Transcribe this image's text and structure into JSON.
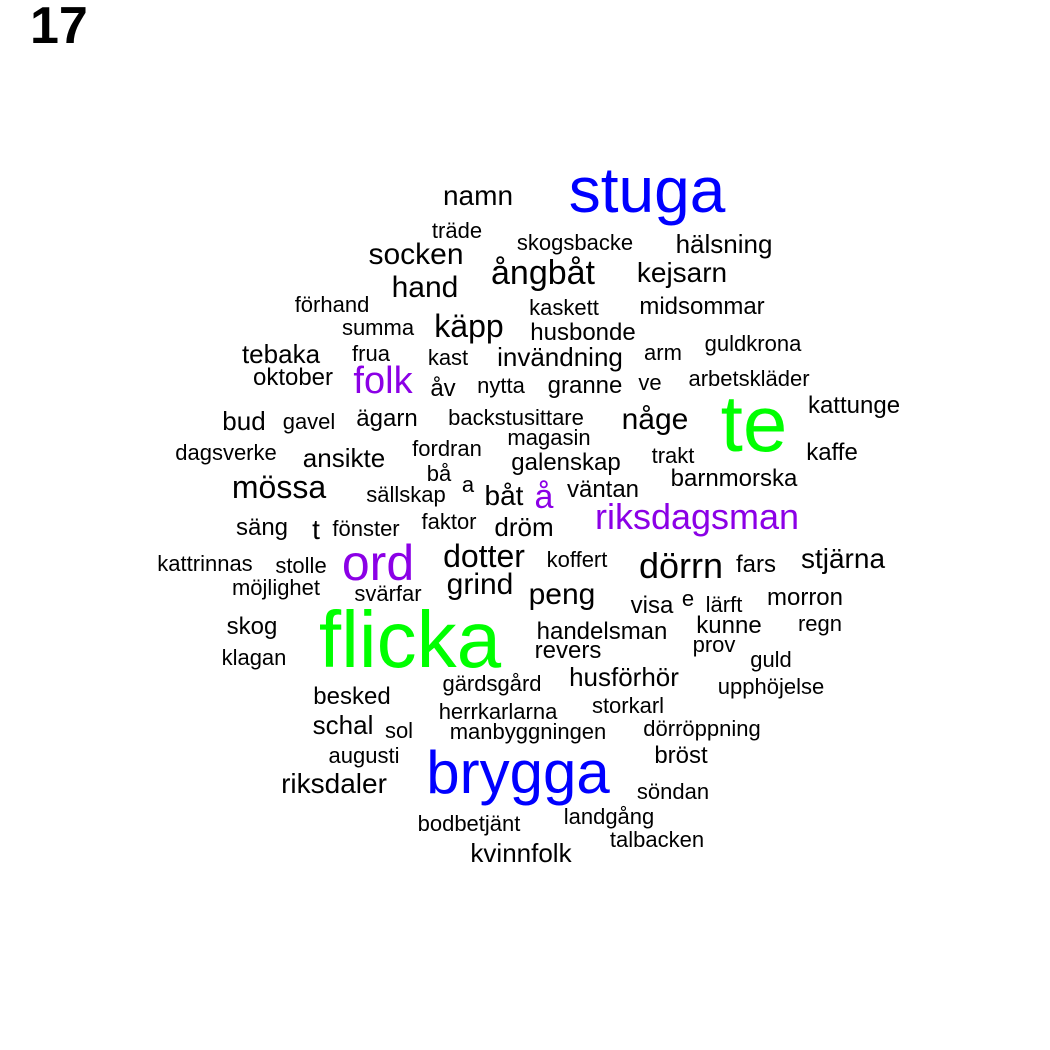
{
  "figure_label": "17",
  "colors": {
    "default": "#000000",
    "blue": "#0000ff",
    "green": "#00ff00",
    "purple": "#8b00e6"
  },
  "words": [
    {
      "text": "stuga",
      "color": "blue"
    },
    {
      "text": "namn"
    },
    {
      "text": "träde"
    },
    {
      "text": "skogsbacke"
    },
    {
      "text": "hälsning"
    },
    {
      "text": "socken"
    },
    {
      "text": "ångbåt"
    },
    {
      "text": "kejsarn"
    },
    {
      "text": "hand"
    },
    {
      "text": "förhand"
    },
    {
      "text": "kaskett"
    },
    {
      "text": "midsommar"
    },
    {
      "text": "summa"
    },
    {
      "text": "käpp"
    },
    {
      "text": "husbonde"
    },
    {
      "text": "tebaka"
    },
    {
      "text": "frua"
    },
    {
      "text": "kast"
    },
    {
      "text": "invändning"
    },
    {
      "text": "arm"
    },
    {
      "text": "guldkrona"
    },
    {
      "text": "oktober"
    },
    {
      "text": "folk",
      "color": "purple"
    },
    {
      "text": "åv"
    },
    {
      "text": "nytta"
    },
    {
      "text": "granne"
    },
    {
      "text": "ve"
    },
    {
      "text": "arbetskläder"
    },
    {
      "text": "te",
      "color": "green"
    },
    {
      "text": "kattunge"
    },
    {
      "text": "bud"
    },
    {
      "text": "gavel"
    },
    {
      "text": "ägarn"
    },
    {
      "text": "backstusittare"
    },
    {
      "text": "någe"
    },
    {
      "text": "magasin"
    },
    {
      "text": "dagsverke"
    },
    {
      "text": "ansikte"
    },
    {
      "text": "fordran"
    },
    {
      "text": "trakt"
    },
    {
      "text": "kaffe"
    },
    {
      "text": "bå"
    },
    {
      "text": "galenskap"
    },
    {
      "text": "barnmorska"
    },
    {
      "text": "mössa"
    },
    {
      "text": "sällskap"
    },
    {
      "text": "a"
    },
    {
      "text": "båt"
    },
    {
      "text": "å",
      "color": "purple"
    },
    {
      "text": "väntan"
    },
    {
      "text": "säng"
    },
    {
      "text": "t"
    },
    {
      "text": "fönster"
    },
    {
      "text": "faktor"
    },
    {
      "text": "dröm"
    },
    {
      "text": "riksdagsman",
      "color": "purple"
    },
    {
      "text": "kattrinnas"
    },
    {
      "text": "stolle"
    },
    {
      "text": "ord",
      "color": "purple"
    },
    {
      "text": "dotter"
    },
    {
      "text": "koffert"
    },
    {
      "text": "dörrn"
    },
    {
      "text": "fars"
    },
    {
      "text": "stjärna"
    },
    {
      "text": "möjlighet"
    },
    {
      "text": "svärfar"
    },
    {
      "text": "grind"
    },
    {
      "text": "peng"
    },
    {
      "text": "visa"
    },
    {
      "text": "e"
    },
    {
      "text": "lärft"
    },
    {
      "text": "morron"
    },
    {
      "text": "skog"
    },
    {
      "text": "flicka",
      "color": "green"
    },
    {
      "text": "handelsman"
    },
    {
      "text": "kunne"
    },
    {
      "text": "regn"
    },
    {
      "text": "klagan"
    },
    {
      "text": "revers"
    },
    {
      "text": "prov"
    },
    {
      "text": "guld"
    },
    {
      "text": "gärdsgård"
    },
    {
      "text": "husförhör"
    },
    {
      "text": "upphöjelse"
    },
    {
      "text": "besked"
    },
    {
      "text": "storkarl"
    },
    {
      "text": "herrkarlarna"
    },
    {
      "text": "schal"
    },
    {
      "text": "sol"
    },
    {
      "text": "manbyggningen"
    },
    {
      "text": "dörröppning"
    },
    {
      "text": "augusti"
    },
    {
      "text": "bröst"
    },
    {
      "text": "brygga",
      "color": "blue"
    },
    {
      "text": "riksdaler"
    },
    {
      "text": "söndan"
    },
    {
      "text": "landgång"
    },
    {
      "text": "bodbetjänt"
    },
    {
      "text": "talbacken"
    },
    {
      "text": "kvinnfolk"
    }
  ]
}
